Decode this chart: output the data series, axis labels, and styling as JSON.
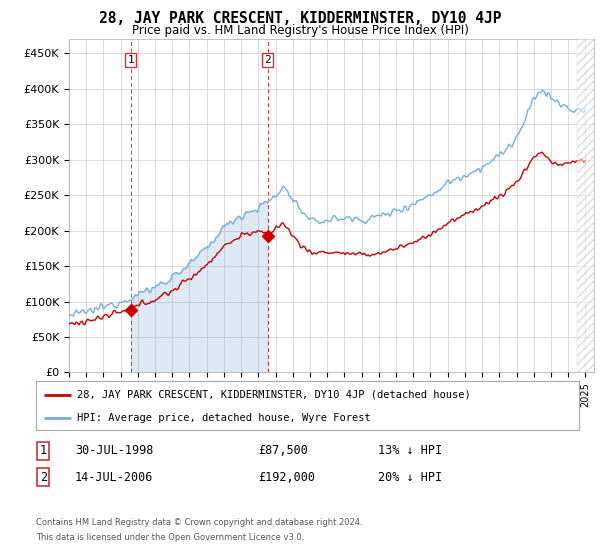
{
  "title": "28, JAY PARK CRESCENT, KIDDERMINSTER, DY10 4JP",
  "subtitle": "Price paid vs. HM Land Registry's House Price Index (HPI)",
  "sale1_price": 87500,
  "sale1_label": "30-JUL-1998",
  "sale1_pct": "13% ↓ HPI",
  "sale2_price": 192000,
  "sale2_label": "14-JUL-2006",
  "sale2_pct": "20% ↓ HPI",
  "red_line_label": "28, JAY PARK CRESCENT, KIDDERMINSTER, DY10 4JP (detached house)",
  "blue_line_label": "HPI: Average price, detached house, Wyre Forest",
  "footer": "Contains HM Land Registry data © Crown copyright and database right 2024.\nThis data is licensed under the Open Government Licence v3.0.",
  "y_ticks": [
    0,
    50000,
    100000,
    150000,
    200000,
    250000,
    300000,
    350000,
    400000,
    450000
  ],
  "y_labels": [
    "£0",
    "£50K",
    "£100K",
    "£150K",
    "£200K",
    "£250K",
    "£300K",
    "£350K",
    "£400K",
    "£450K"
  ],
  "red_color": "#cc0000",
  "blue_color": "#7aaddb",
  "shade_color": "#ddeeff",
  "marker_color": "#cc0000",
  "dashed_line_color": "#cc0000",
  "background_color": "#ffffff",
  "grid_color": "#cccccc",
  "sale1_x": 1998.583,
  "sale2_x": 2006.542
}
